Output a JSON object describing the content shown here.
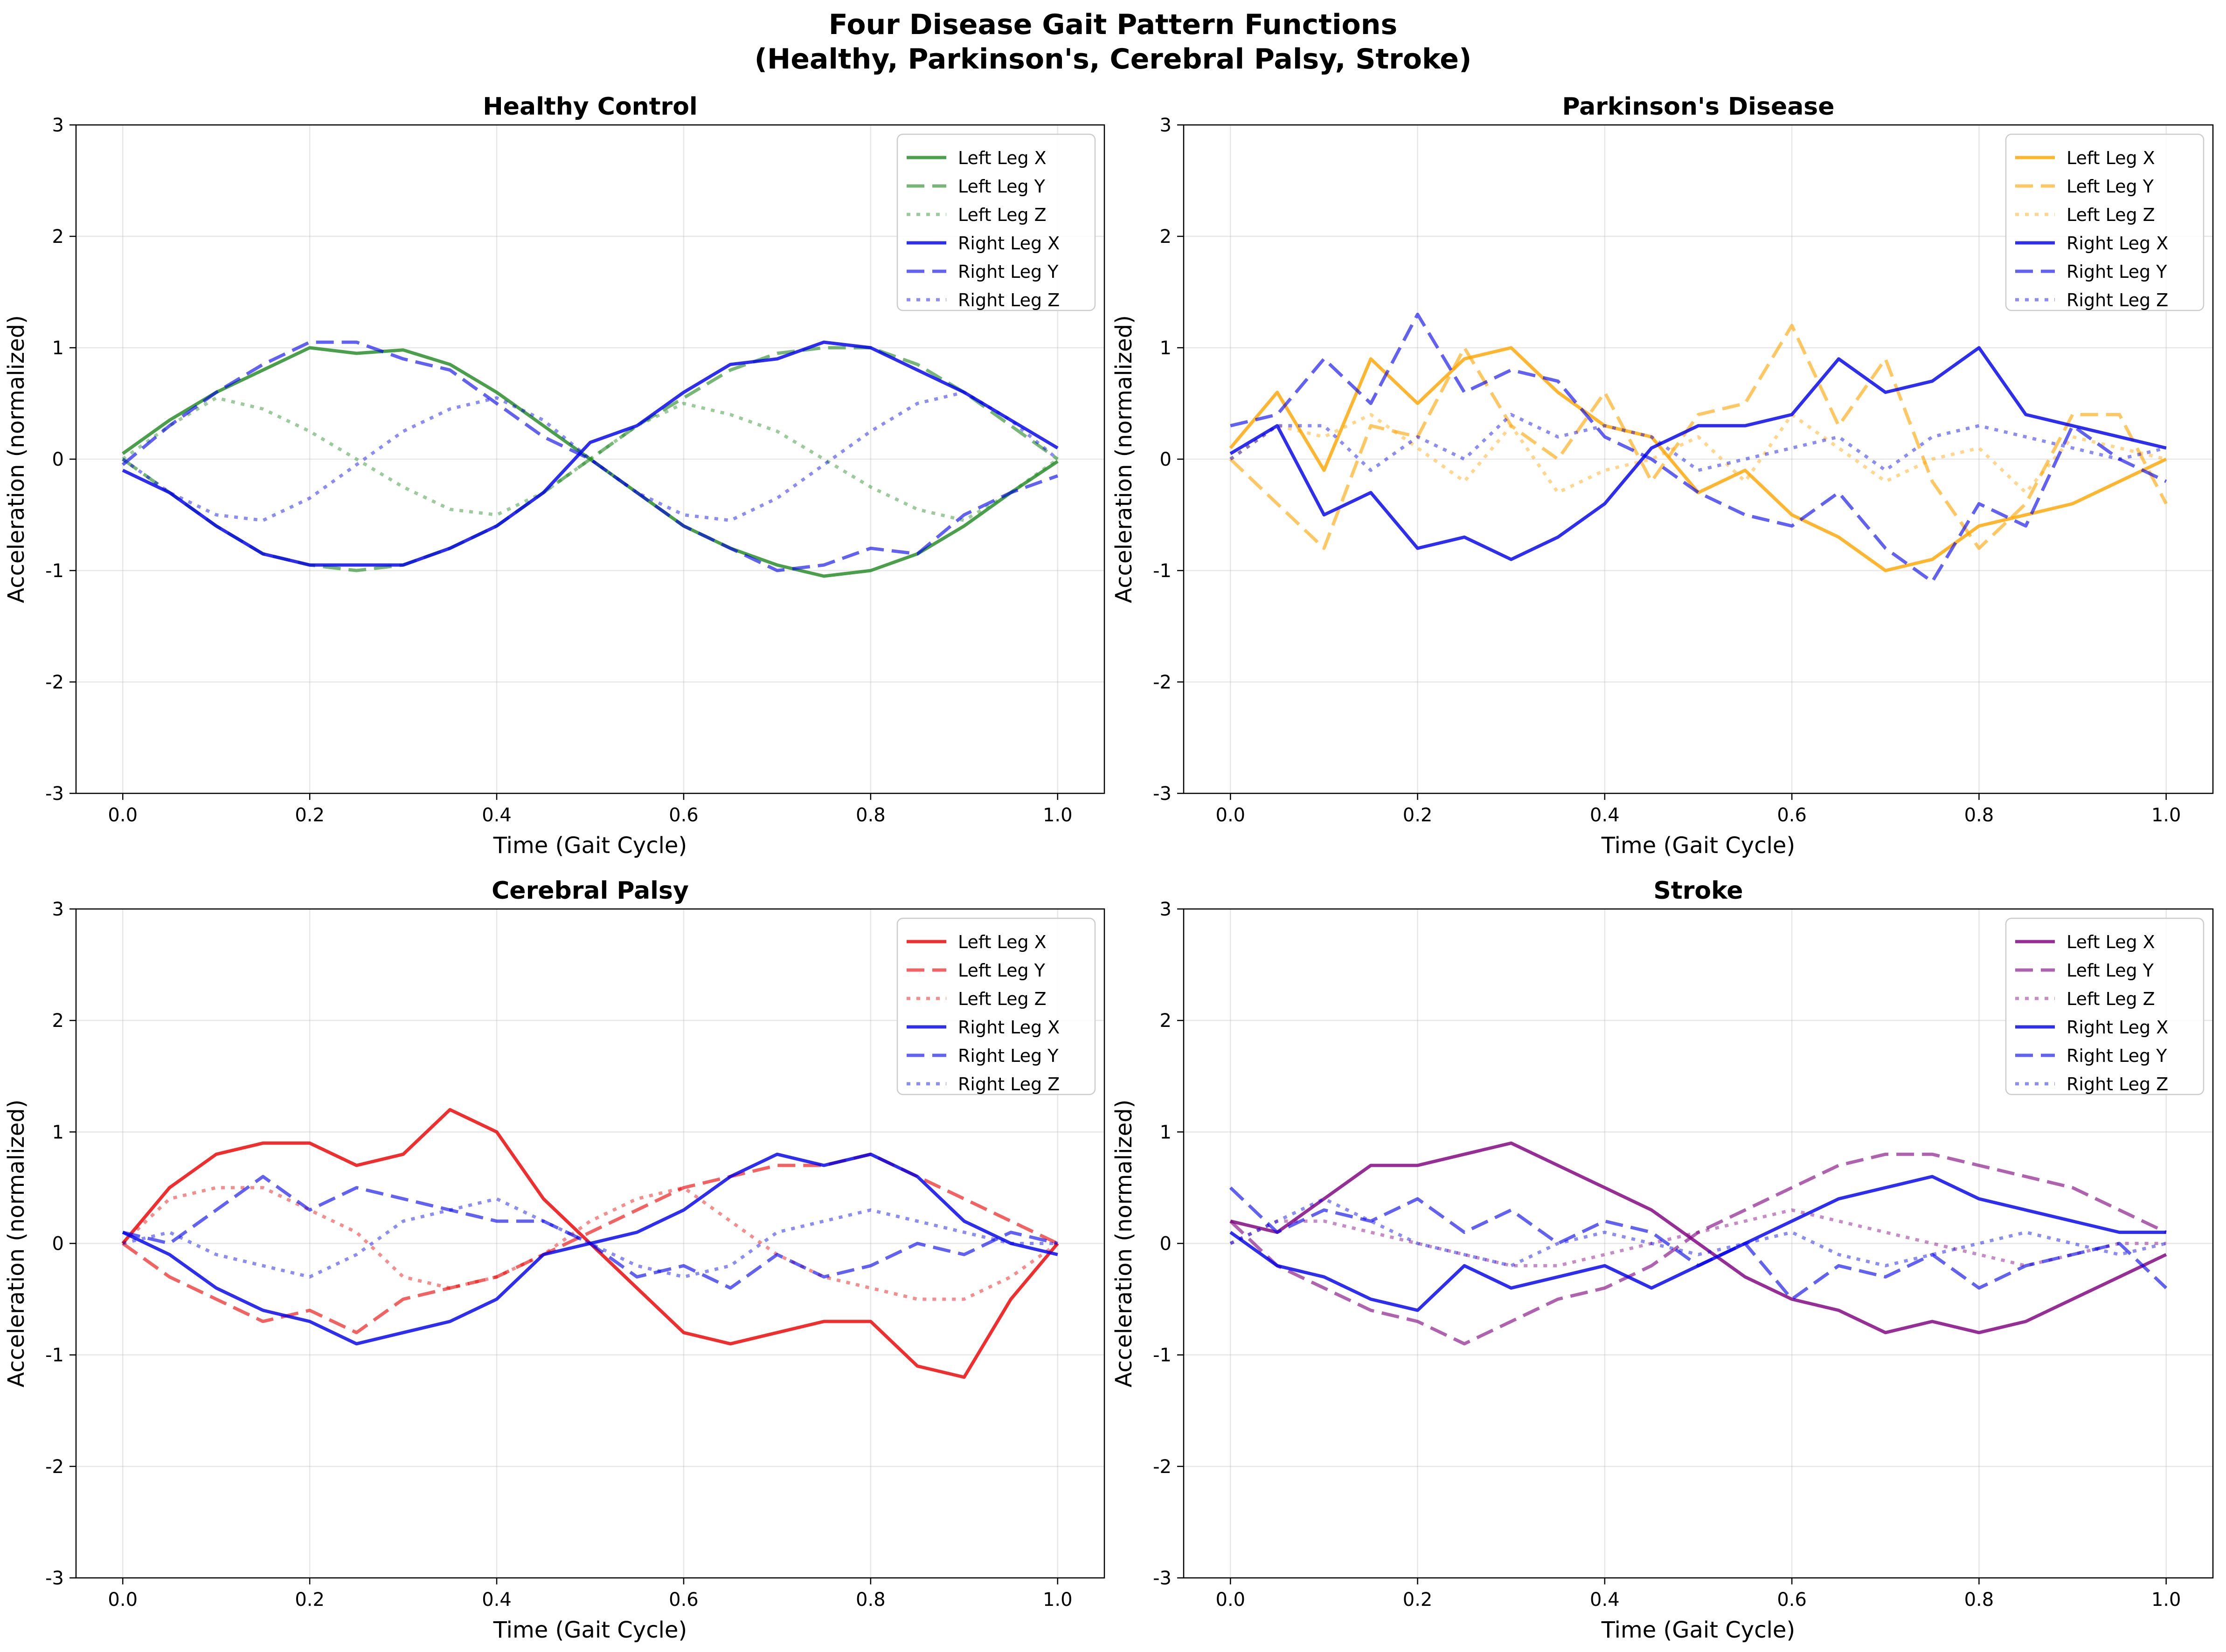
{
  "figure": {
    "title_line1": "Four Disease Gait Pattern Functions",
    "title_line2": "(Healthy, Parkinson's, Cerebral Palsy, Stroke)"
  },
  "chart_data": [
    {
      "type": "line",
      "title": "Healthy Control",
      "xlabel": "Time (Gait Cycle)",
      "ylabel": "Acceleration (normalized)",
      "xlim": [
        -0.05,
        1.05
      ],
      "ylim": [
        -3,
        3
      ],
      "xticks": [
        0.0,
        0.2,
        0.4,
        0.6,
        0.8,
        1.0
      ],
      "yticks": [
        -3,
        -2,
        -1,
        0,
        1,
        2,
        3
      ],
      "grid": true,
      "legend_position": "upper right",
      "x": [
        0.0,
        0.05,
        0.1,
        0.15,
        0.2,
        0.25,
        0.3,
        0.35,
        0.4,
        0.45,
        0.5,
        0.55,
        0.6,
        0.65,
        0.7,
        0.75,
        0.8,
        0.85,
        0.9,
        0.95,
        1.0
      ],
      "series": [
        {
          "name": "Left Leg X",
          "color": "#228b22",
          "style": "solid",
          "values": [
            0.05,
            0.35,
            0.6,
            0.8,
            1.0,
            0.95,
            0.98,
            0.85,
            0.6,
            0.3,
            0.0,
            -0.3,
            -0.6,
            -0.8,
            -0.95,
            -1.05,
            -1.0,
            -0.85,
            -0.6,
            -0.3,
            -0.02
          ]
        },
        {
          "name": "Left Leg Y",
          "color": "#228b22",
          "style": "dashed",
          "values": [
            0.0,
            -0.3,
            -0.6,
            -0.85,
            -0.95,
            -1.0,
            -0.95,
            -0.8,
            -0.6,
            -0.3,
            0.0,
            0.3,
            0.55,
            0.8,
            0.95,
            1.0,
            1.0,
            0.85,
            0.6,
            0.3,
            0.0
          ]
        },
        {
          "name": "Left Leg Z",
          "color": "#228b22",
          "style": "dotted",
          "values": [
            0.0,
            0.3,
            0.55,
            0.45,
            0.25,
            0.0,
            -0.25,
            -0.45,
            -0.5,
            -0.3,
            0.0,
            0.3,
            0.5,
            0.4,
            0.25,
            0.0,
            -0.25,
            -0.45,
            -0.55,
            -0.3,
            0.0
          ]
        },
        {
          "name": "Right Leg X",
          "color": "#0000ee",
          "style": "solid",
          "values": [
            -0.1,
            -0.3,
            -0.6,
            -0.85,
            -0.95,
            -0.95,
            -0.95,
            -0.8,
            -0.6,
            -0.3,
            0.15,
            0.3,
            0.6,
            0.85,
            0.9,
            1.05,
            1.0,
            0.8,
            0.6,
            0.35,
            0.1
          ]
        },
        {
          "name": "Right Leg Y",
          "color": "#0000ee",
          "style": "dashed",
          "values": [
            -0.05,
            0.3,
            0.6,
            0.85,
            1.05,
            1.05,
            0.9,
            0.8,
            0.5,
            0.2,
            0.0,
            -0.3,
            -0.6,
            -0.8,
            -1.0,
            -0.95,
            -0.8,
            -0.85,
            -0.5,
            -0.3,
            -0.15
          ]
        },
        {
          "name": "Right Leg Z",
          "color": "#0000ee",
          "style": "dotted",
          "values": [
            0.0,
            -0.3,
            -0.5,
            -0.55,
            -0.35,
            -0.05,
            0.25,
            0.45,
            0.55,
            0.35,
            0.0,
            -0.3,
            -0.5,
            -0.55,
            -0.35,
            -0.05,
            0.25,
            0.5,
            0.6,
            0.35,
            0.0
          ]
        }
      ]
    },
    {
      "type": "line",
      "title": "Parkinson's Disease",
      "xlabel": "Time (Gait Cycle)",
      "ylabel": "Acceleration (normalized)",
      "xlim": [
        -0.05,
        1.05
      ],
      "ylim": [
        -3,
        3
      ],
      "xticks": [
        0.0,
        0.2,
        0.4,
        0.6,
        0.8,
        1.0
      ],
      "yticks": [
        -3,
        -2,
        -1,
        0,
        1,
        2,
        3
      ],
      "grid": true,
      "legend_position": "upper right",
      "x": [
        0.0,
        0.05,
        0.1,
        0.15,
        0.2,
        0.25,
        0.3,
        0.35,
        0.4,
        0.45,
        0.5,
        0.55,
        0.6,
        0.65,
        0.7,
        0.75,
        0.8,
        0.85,
        0.9,
        0.95,
        1.0
      ],
      "series": [
        {
          "name": "Left Leg X",
          "color": "#ffa500",
          "style": "solid",
          "values": [
            0.1,
            0.6,
            -0.1,
            0.9,
            0.5,
            0.9,
            1.0,
            0.6,
            0.3,
            0.2,
            -0.3,
            -0.1,
            -0.5,
            -0.7,
            -1.0,
            -0.9,
            -0.6,
            -0.5,
            -0.4,
            -0.2,
            0.0
          ]
        },
        {
          "name": "Left Leg Y",
          "color": "#ffa500",
          "style": "dashed",
          "values": [
            0.0,
            -0.4,
            -0.8,
            0.3,
            0.2,
            1.0,
            0.3,
            0.0,
            0.6,
            -0.2,
            0.4,
            0.5,
            1.2,
            0.3,
            0.9,
            -0.2,
            -0.8,
            -0.4,
            0.4,
            0.4,
            -0.4
          ]
        },
        {
          "name": "Left Leg Z",
          "color": "#ffa500",
          "style": "dotted",
          "values": [
            0.0,
            0.3,
            0.2,
            0.4,
            0.1,
            -0.2,
            0.3,
            -0.3,
            -0.1,
            0.0,
            0.2,
            -0.2,
            0.4,
            0.1,
            -0.2,
            0.0,
            0.1,
            -0.3,
            0.2,
            0.1,
            0.0
          ]
        },
        {
          "name": "Right Leg X",
          "color": "#0000ee",
          "style": "solid",
          "values": [
            0.05,
            0.3,
            -0.5,
            -0.3,
            -0.8,
            -0.7,
            -0.9,
            -0.7,
            -0.4,
            0.1,
            0.3,
            0.3,
            0.4,
            0.9,
            0.6,
            0.7,
            1.0,
            0.4,
            0.3,
            0.2,
            0.1
          ]
        },
        {
          "name": "Right Leg Y",
          "color": "#0000ee",
          "style": "dashed",
          "values": [
            0.3,
            0.4,
            0.9,
            0.5,
            1.3,
            0.6,
            0.8,
            0.7,
            0.2,
            0.0,
            -0.3,
            -0.5,
            -0.6,
            -0.3,
            -0.8,
            -1.1,
            -0.4,
            -0.6,
            0.3,
            0.0,
            -0.2
          ]
        },
        {
          "name": "Right Leg Z",
          "color": "#0000ee",
          "style": "dotted",
          "values": [
            0.0,
            0.3,
            0.3,
            -0.1,
            0.2,
            0.0,
            0.4,
            0.2,
            0.3,
            0.2,
            -0.1,
            0.0,
            0.1,
            0.2,
            -0.1,
            0.2,
            0.3,
            0.2,
            0.1,
            0.0,
            0.1
          ]
        }
      ]
    },
    {
      "type": "line",
      "title": "Cerebral Palsy",
      "xlabel": "Time (Gait Cycle)",
      "ylabel": "Acceleration (normalized)",
      "xlim": [
        -0.05,
        1.05
      ],
      "ylim": [
        -3,
        3
      ],
      "xticks": [
        0.0,
        0.2,
        0.4,
        0.6,
        0.8,
        1.0
      ],
      "yticks": [
        -3,
        -2,
        -1,
        0,
        1,
        2,
        3
      ],
      "grid": true,
      "legend_position": "upper right",
      "x": [
        0.0,
        0.05,
        0.1,
        0.15,
        0.2,
        0.25,
        0.3,
        0.35,
        0.4,
        0.45,
        0.5,
        0.55,
        0.6,
        0.65,
        0.7,
        0.75,
        0.8,
        0.85,
        0.9,
        0.95,
        1.0
      ],
      "series": [
        {
          "name": "Left Leg X",
          "color": "#ee0000",
          "style": "solid",
          "values": [
            0.0,
            0.5,
            0.8,
            0.9,
            0.9,
            0.7,
            0.8,
            1.2,
            1.0,
            0.4,
            0.0,
            -0.4,
            -0.8,
            -0.9,
            -0.8,
            -0.7,
            -0.7,
            -1.1,
            -1.2,
            -0.5,
            0.0
          ]
        },
        {
          "name": "Left Leg Y",
          "color": "#ee0000",
          "style": "dashed",
          "values": [
            0.0,
            -0.3,
            -0.5,
            -0.7,
            -0.6,
            -0.8,
            -0.5,
            -0.4,
            -0.3,
            -0.1,
            0.1,
            0.3,
            0.5,
            0.6,
            0.7,
            0.7,
            0.8,
            0.6,
            0.4,
            0.2,
            0.0
          ]
        },
        {
          "name": "Left Leg Z",
          "color": "#ee0000",
          "style": "dotted",
          "values": [
            0.0,
            0.4,
            0.5,
            0.5,
            0.3,
            0.1,
            -0.3,
            -0.4,
            -0.3,
            -0.1,
            0.2,
            0.4,
            0.5,
            0.2,
            -0.1,
            -0.3,
            -0.4,
            -0.5,
            -0.5,
            -0.3,
            0.0
          ]
        },
        {
          "name": "Right Leg X",
          "color": "#0000ee",
          "style": "solid",
          "values": [
            0.1,
            -0.1,
            -0.4,
            -0.6,
            -0.7,
            -0.9,
            -0.8,
            -0.7,
            -0.5,
            -0.1,
            0.0,
            0.1,
            0.3,
            0.6,
            0.8,
            0.7,
            0.8,
            0.6,
            0.2,
            0.0,
            -0.1
          ]
        },
        {
          "name": "Right Leg Y",
          "color": "#0000ee",
          "style": "dashed",
          "values": [
            0.1,
            0.0,
            0.3,
            0.6,
            0.3,
            0.5,
            0.4,
            0.3,
            0.2,
            0.2,
            0.0,
            -0.3,
            -0.2,
            -0.4,
            -0.1,
            -0.3,
            -0.2,
            0.0,
            -0.1,
            0.1,
            0.0
          ]
        },
        {
          "name": "Right Leg Z",
          "color": "#0000ee",
          "style": "dotted",
          "values": [
            0.0,
            0.1,
            -0.1,
            -0.2,
            -0.3,
            -0.1,
            0.2,
            0.3,
            0.4,
            0.2,
            0.0,
            -0.2,
            -0.3,
            -0.2,
            0.1,
            0.2,
            0.3,
            0.2,
            0.1,
            0.0,
            0.0
          ]
        }
      ]
    },
    {
      "type": "line",
      "title": "Stroke",
      "xlabel": "Time (Gait Cycle)",
      "ylabel": "Acceleration (normalized)",
      "xlim": [
        -0.05,
        1.05
      ],
      "ylim": [
        -3,
        3
      ],
      "xticks": [
        0.0,
        0.2,
        0.4,
        0.6,
        0.8,
        1.0
      ],
      "yticks": [
        -3,
        -2,
        -1,
        0,
        1,
        2,
        3
      ],
      "grid": true,
      "legend_position": "upper right",
      "x": [
        0.0,
        0.05,
        0.1,
        0.15,
        0.2,
        0.25,
        0.3,
        0.35,
        0.4,
        0.45,
        0.5,
        0.55,
        0.6,
        0.65,
        0.7,
        0.75,
        0.8,
        0.85,
        0.9,
        0.95,
        1.0
      ],
      "series": [
        {
          "name": "Left Leg X",
          "color": "#800080",
          "style": "solid",
          "values": [
            0.2,
            0.1,
            0.4,
            0.7,
            0.7,
            0.8,
            0.9,
            0.7,
            0.5,
            0.3,
            0.0,
            -0.3,
            -0.5,
            -0.6,
            -0.8,
            -0.7,
            -0.8,
            -0.7,
            -0.5,
            -0.3,
            -0.1
          ]
        },
        {
          "name": "Left Leg Y",
          "color": "#800080",
          "style": "dashed",
          "values": [
            0.2,
            -0.2,
            -0.4,
            -0.6,
            -0.7,
            -0.9,
            -0.7,
            -0.5,
            -0.4,
            -0.2,
            0.1,
            0.3,
            0.5,
            0.7,
            0.8,
            0.8,
            0.7,
            0.6,
            0.5,
            0.3,
            0.1
          ]
        },
        {
          "name": "Left Leg Z",
          "color": "#800080",
          "style": "dotted",
          "values": [
            0.0,
            0.2,
            0.2,
            0.1,
            0.0,
            -0.1,
            -0.2,
            -0.2,
            -0.1,
            0.0,
            0.1,
            0.2,
            0.3,
            0.2,
            0.1,
            0.0,
            -0.1,
            -0.2,
            -0.1,
            0.0,
            0.0
          ]
        },
        {
          "name": "Right Leg X",
          "color": "#0000ee",
          "style": "solid",
          "values": [
            0.1,
            -0.2,
            -0.3,
            -0.5,
            -0.6,
            -0.2,
            -0.4,
            -0.3,
            -0.2,
            -0.4,
            -0.2,
            0.0,
            0.2,
            0.4,
            0.5,
            0.6,
            0.4,
            0.3,
            0.2,
            0.1,
            0.1
          ]
        },
        {
          "name": "Right Leg Y",
          "color": "#0000ee",
          "style": "dashed",
          "values": [
            0.5,
            0.1,
            0.3,
            0.2,
            0.4,
            0.1,
            0.3,
            0.0,
            0.2,
            0.1,
            -0.2,
            0.0,
            -0.5,
            -0.2,
            -0.3,
            -0.1,
            -0.4,
            -0.2,
            -0.1,
            0.0,
            -0.4
          ]
        },
        {
          "name": "Right Leg Z",
          "color": "#0000ee",
          "style": "dotted",
          "values": [
            0.0,
            0.2,
            0.4,
            0.2,
            0.0,
            -0.1,
            -0.2,
            0.0,
            0.1,
            0.0,
            -0.1,
            0.0,
            0.1,
            -0.1,
            -0.2,
            -0.1,
            0.0,
            0.1,
            0.0,
            -0.1,
            0.0
          ]
        }
      ]
    }
  ]
}
